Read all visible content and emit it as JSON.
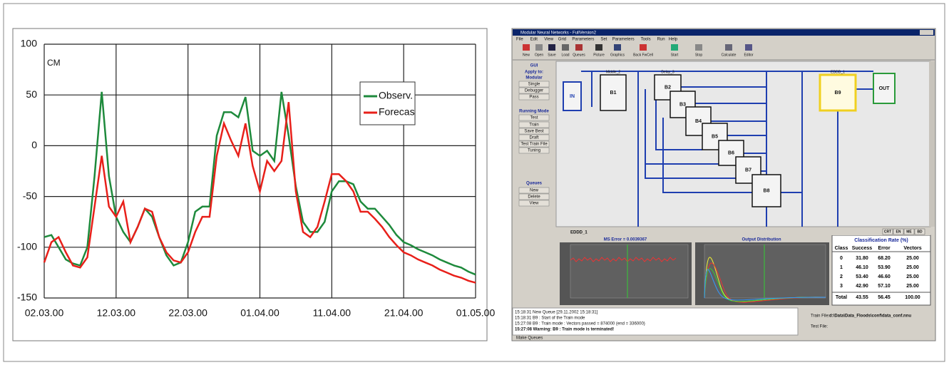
{
  "chart_data": {
    "type": "line",
    "y_label": "CM",
    "x": [
      "02.03.00",
      "03.03.00",
      "04.03.00",
      "05.03.00",
      "06.03.00",
      "07.03.00",
      "08.03.00",
      "09.03.00",
      "10.03.00",
      "11.03.00",
      "12.03.00",
      "13.03.00",
      "14.03.00",
      "15.03.00",
      "16.03.00",
      "17.03.00",
      "18.03.00",
      "19.03.00",
      "20.03.00",
      "21.03.00",
      "22.03.00",
      "23.03.00",
      "24.03.00",
      "25.03.00",
      "26.03.00",
      "27.03.00",
      "28.03.00",
      "29.03.00",
      "30.03.00",
      "31.03.00",
      "01.04.00",
      "02.04.00",
      "03.04.00",
      "04.04.00",
      "05.04.00",
      "06.04.00",
      "07.04.00",
      "08.04.00",
      "09.04.00",
      "10.04.00",
      "11.04.00",
      "12.04.00",
      "13.04.00",
      "14.04.00",
      "15.04.00",
      "16.04.00",
      "17.04.00",
      "18.04.00",
      "19.04.00",
      "20.04.00",
      "21.04.00",
      "22.04.00",
      "23.04.00",
      "24.04.00",
      "25.04.00",
      "26.04.00",
      "27.04.00",
      "28.04.00",
      "29.04.00",
      "30.04.00",
      "01.05.00"
    ],
    "series": [
      {
        "name": "Observ.",
        "color": "#1e8a3c",
        "values": [
          -90,
          -88,
          -100,
          -112,
          -116,
          -118,
          -100,
          -30,
          53,
          -30,
          -70,
          -85,
          -95,
          -80,
          -62,
          -70,
          -90,
          -108,
          -118,
          -115,
          -95,
          -65,
          -60,
          -60,
          10,
          33,
          33,
          28,
          48,
          -5,
          -10,
          -5,
          -15,
          53,
          10,
          -40,
          -75,
          -85,
          -85,
          -75,
          -45,
          -35,
          -35,
          -38,
          -55,
          -62,
          -62,
          -70,
          -78,
          -88,
          -95,
          -98,
          -102,
          -105,
          -108,
          -112,
          -115,
          -118,
          -120,
          -124,
          -127
        ]
      },
      {
        "name": "Forecas",
        "color": "#e8201a",
        "values": [
          -115,
          -95,
          -90,
          -105,
          -118,
          -120,
          -110,
          -60,
          -10,
          -60,
          -70,
          -55,
          -95,
          -80,
          -62,
          -65,
          -90,
          -105,
          -113,
          -115,
          -105,
          -85,
          -70,
          -70,
          -10,
          22,
          5,
          -10,
          22,
          -20,
          -45,
          -15,
          -25,
          -15,
          43,
          -45,
          -85,
          -90,
          -80,
          -55,
          -28,
          -28,
          -35,
          -45,
          -65,
          -65,
          -72,
          -80,
          -90,
          -98,
          -105,
          -108,
          -112,
          -115,
          -118,
          -122,
          -125,
          -128,
          -130,
          -133,
          -135
        ]
      }
    ],
    "xlim": [
      "02.03.00",
      "01.05.00"
    ],
    "xticks": [
      "02.03.00",
      "12.03.00",
      "22.03.00",
      "01.04.00",
      "11.04.00",
      "21.04.00",
      "01.05.00"
    ],
    "ylim": [
      -150,
      100
    ],
    "yticks": [
      -150,
      -100,
      -50,
      0,
      50,
      100
    ],
    "grid": true,
    "legend": "upper right"
  },
  "screenshot": {
    "window_title": "Modular Neural Networks - FullVersion2",
    "menu": [
      "File",
      "Edit",
      "View",
      "Grid",
      "Parameters",
      "Set",
      "Parameters",
      "Tools",
      "Run",
      "Help"
    ],
    "toolbar": [
      "New",
      "Open",
      "Save",
      "Load",
      "Queues",
      "Picture",
      "Graphics",
      "Back FwCell",
      "Start",
      "Stop",
      "Calculate",
      "Editor"
    ],
    "side_panel": [
      "GUI",
      "Apply to:",
      "Modular",
      "Single",
      "Debugger",
      "Pass",
      "Running Mode",
      "Test",
      "Train",
      "Save Best",
      "Draft",
      "Test Train File",
      "Tuning",
      "Queues",
      "New",
      "Delete",
      "View"
    ],
    "nodes": [
      {
        "label": "IN"
      },
      {
        "label": "B1",
        "group": "Middle_2"
      },
      {
        "label": "B2",
        "group": "Delay_3"
      },
      {
        "label": "B3"
      },
      {
        "label": "B4"
      },
      {
        "label": "B5"
      },
      {
        "label": "B6"
      },
      {
        "label": "B7"
      },
      {
        "label": "B8"
      },
      {
        "label": "B9",
        "group": "EDDD_1"
      },
      {
        "label": "OUT"
      }
    ],
    "tabs": [
      "CRT",
      "EN",
      "ME",
      "BD"
    ],
    "panel_title": "EDDD_1",
    "error_plot_title": "MS Error = 0.0039367",
    "distribution_title": "Output Distribution",
    "table": {
      "title": "Classification Rate (%)",
      "header": [
        "Class",
        "Success",
        "Error",
        "Vectors"
      ],
      "rows": [
        [
          "0",
          "31.80",
          "68.20",
          "25.00"
        ],
        [
          "1",
          "46.10",
          "53.90",
          "25.00"
        ],
        [
          "2",
          "53.40",
          "46.60",
          "25.00"
        ],
        [
          "3",
          "42.90",
          "57.10",
          "25.00"
        ],
        [
          "Total",
          "43.55",
          "56.45",
          "100.00"
        ]
      ]
    },
    "log": [
      "15:18:31     New Queue [29.11.2002 15:18:31]",
      "15:18:31  B9 : Start of the Train mode",
      "15:27:08  B9 : Train mode : Vectors passed = 874000 (end = 336000)",
      "15:27:08  Warning: B9 : Train mode is terminated!"
    ],
    "train_file_label": "Train File:",
    "train_file": "d:\\Data\\Data_Floods\\conf\\data_conf.nnu",
    "test_file_label": "Test File:",
    "status": "Make Queues"
  }
}
